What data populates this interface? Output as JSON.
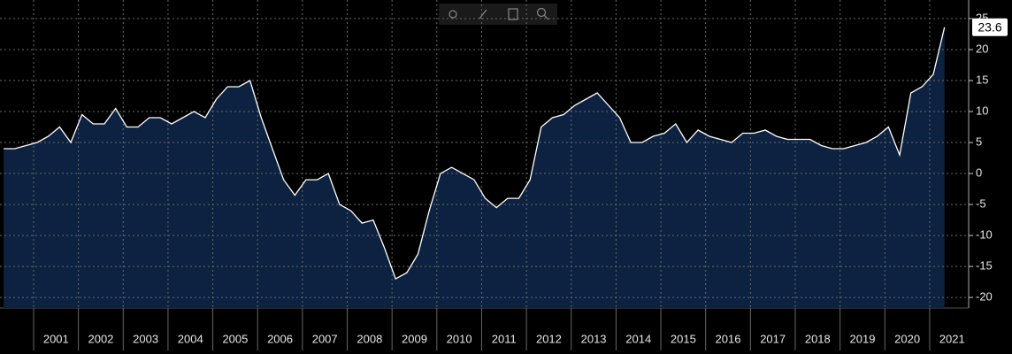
{
  "chart_data": {
    "type": "area",
    "x": [
      2000.33,
      2000.58,
      2000.83,
      2001.08,
      2001.33,
      2001.58,
      2001.83,
      2002.08,
      2002.33,
      2002.58,
      2002.83,
      2003.08,
      2003.33,
      2003.58,
      2003.83,
      2004.08,
      2004.33,
      2004.58,
      2004.83,
      2005.08,
      2005.33,
      2005.58,
      2005.83,
      2006.08,
      2006.33,
      2006.58,
      2006.83,
      2007.08,
      2007.33,
      2007.58,
      2007.83,
      2008.08,
      2008.33,
      2008.58,
      2008.83,
      2009.08,
      2009.33,
      2009.58,
      2009.83,
      2010.08,
      2010.33,
      2010.58,
      2010.83,
      2011.08,
      2011.33,
      2011.58,
      2011.83,
      2012.08,
      2012.33,
      2012.58,
      2012.83,
      2013.08,
      2013.33,
      2013.58,
      2013.83,
      2014.08,
      2014.33,
      2014.58,
      2014.83,
      2015.08,
      2015.33,
      2015.58,
      2015.83,
      2016.08,
      2016.33,
      2016.58,
      2016.83,
      2017.08,
      2017.33,
      2017.58,
      2017.83,
      2018.08,
      2018.33,
      2018.58,
      2018.83,
      2019.08,
      2019.33,
      2019.58,
      2019.83,
      2020.08,
      2020.33,
      2020.58,
      2020.83,
      2021.08,
      2021.33
    ],
    "values": [
      4,
      4,
      4.5,
      5,
      6,
      7.5,
      5,
      9.5,
      8,
      8,
      10.5,
      7.5,
      7.5,
      9,
      9,
      8,
      9,
      10,
      9,
      12,
      14,
      14,
      15,
      9,
      4,
      -1,
      -3.5,
      -1,
      -1,
      0,
      -5,
      -6,
      -8,
      -7.5,
      -12,
      -17,
      -16,
      -13,
      -6,
      0,
      1,
      0,
      -1,
      -4,
      -5.5,
      -4,
      -4,
      -1,
      7.5,
      9,
      9.5,
      11,
      12,
      13,
      11,
      9,
      5,
      5,
      6,
      6.5,
      8,
      5,
      7,
      6,
      5.5,
      5,
      6.5,
      6.5,
      7,
      6,
      5.5,
      5.5,
      5.5,
      4.5,
      4,
      4,
      4.5,
      5,
      6,
      7.5,
      3,
      13,
      14,
      16,
      23.6
    ],
    "color": "#0c2240",
    "line_color": "#ffffff",
    "xlim": [
      2000.25,
      2021.87
    ],
    "xticks": [
      2001,
      2002,
      2003,
      2004,
      2005,
      2006,
      2007,
      2008,
      2009,
      2010,
      2011,
      2012,
      2013,
      2014,
      2015,
      2016,
      2017,
      2018,
      2019,
      2020,
      2021
    ],
    "ylim": [
      -21.7,
      28
    ],
    "yticks": [
      -20,
      -15,
      -10,
      -5,
      0,
      5,
      10,
      15,
      20,
      25
    ],
    "grid": true
  }
}
